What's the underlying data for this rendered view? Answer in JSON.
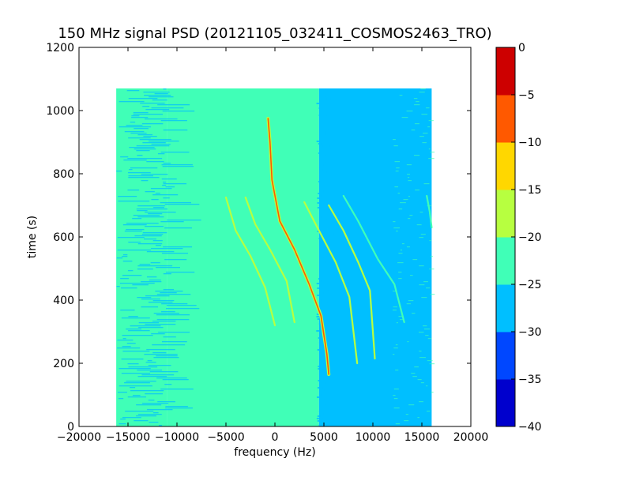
{
  "chart_data": {
    "type": "heatmap",
    "title": "150 MHz signal PSD (20121105_032411_COSMOS2463_TRO)",
    "xlabel": "frequency (Hz)",
    "ylabel": "time (s)",
    "xlim": [
      -20000,
      20000
    ],
    "ylim": [
      0,
      1200
    ],
    "xticks": [
      -20000,
      -15000,
      -10000,
      -5000,
      0,
      5000,
      10000,
      15000,
      20000
    ],
    "xtick_labels": [
      "−20000",
      "−15000",
      "−10000",
      "−5000",
      "0",
      "5000",
      "10000",
      "15000",
      "20000"
    ],
    "yticks": [
      0,
      200,
      400,
      600,
      800,
      1000,
      1200
    ],
    "ytick_labels": [
      "0",
      "200",
      "400",
      "600",
      "800",
      "1000",
      "1200"
    ],
    "data_extent": {
      "x": [
        -16200,
        16000
      ],
      "y": [
        0,
        1070
      ]
    },
    "grid": false,
    "colorbar": {
      "levels": [
        -40,
        -35,
        -30,
        -25,
        -20,
        -15,
        -10,
        -5,
        0
      ],
      "tick_labels": [
        "−40",
        "−35",
        "−30",
        "−25",
        "−20",
        "−15",
        "−10",
        "−5",
        "0"
      ],
      "colors": [
        "#0000cd",
        "#0047ff",
        "#00bfff",
        "#40ffb7",
        "#b7ff40",
        "#ffd700",
        "#ff5900",
        "#cd0000"
      ]
    },
    "regions": [
      {
        "x": [
          -16200,
          -11000
        ],
        "y": [
          0,
          1070
        ],
        "level": -22.5,
        "note": "noisy mix of -25..-20 and -30..-25"
      },
      {
        "x": [
          -11000,
          4500
        ],
        "y": [
          0,
          1070
        ],
        "level": -22.5
      },
      {
        "x": [
          4500,
          16000
        ],
        "y": [
          0,
          1070
        ],
        "level": -27.5
      }
    ],
    "traces": [
      {
        "points": [
          [
            -700,
            975
          ],
          [
            -500,
            900
          ],
          [
            -300,
            780
          ],
          [
            500,
            650
          ],
          [
            2000,
            560
          ],
          [
            3500,
            450
          ],
          [
            4700,
            350
          ],
          [
            5300,
            230
          ],
          [
            5500,
            165
          ]
        ],
        "level": -12.5
      },
      {
        "points": [
          [
            -5000,
            725
          ],
          [
            -4000,
            620
          ],
          [
            -2500,
            540
          ],
          [
            -1000,
            440
          ],
          [
            0,
            320
          ]
        ],
        "level": -17.5
      },
      {
        "points": [
          [
            -3000,
            725
          ],
          [
            -2000,
            640
          ],
          [
            -500,
            560
          ],
          [
            1200,
            460
          ],
          [
            2000,
            330
          ]
        ],
        "level": -17.5
      },
      {
        "points": [
          [
            3000,
            710
          ],
          [
            4500,
            620
          ],
          [
            6200,
            520
          ],
          [
            7600,
            410
          ],
          [
            8400,
            200
          ]
        ],
        "level": -17.5
      },
      {
        "points": [
          [
            5500,
            700
          ],
          [
            7000,
            620
          ],
          [
            8500,
            520
          ],
          [
            9700,
            430
          ],
          [
            10200,
            215
          ]
        ],
        "level": -17.5
      },
      {
        "points": [
          [
            7000,
            730
          ],
          [
            8500,
            650
          ],
          [
            10500,
            530
          ],
          [
            12200,
            450
          ],
          [
            13200,
            330
          ]
        ],
        "level": -22.5
      },
      {
        "points": [
          [
            15500,
            730
          ],
          [
            15800,
            680
          ],
          [
            16000,
            630
          ]
        ],
        "level": -22.5
      }
    ]
  }
}
